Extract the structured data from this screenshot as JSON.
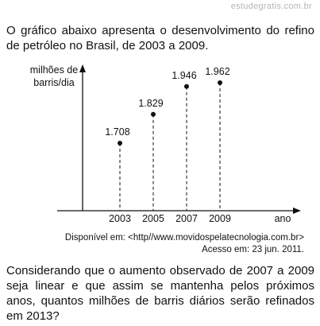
{
  "watermark": "estudegratis.com.br",
  "intro": "O gráfico abaixo apresenta o desenvolvimento do refino de petróleo no Brasil, de 2003 a 2009.",
  "chart_data": {
    "type": "scatter",
    "ylabel_line1": "milhões de",
    "ylabel_line2": "barris/dia",
    "xlabel": "ano",
    "x": [
      "2003",
      "2005",
      "2007",
      "2009"
    ],
    "values": [
      1.708,
      1.829,
      1.946,
      1.962
    ],
    "value_labels": [
      "1.708",
      "1.829",
      "1.946",
      "1.962"
    ],
    "grid": false,
    "dashed_drop_lines": true
  },
  "source": {
    "line1": "Disponível em: <http//www.movidospelatecnologia.com.br>",
    "line2": "Acesso em: 23 jun. 2011."
  },
  "question": "Considerando que o aumento observado de 2007 a 2009 seja linear e que assim se mantenha pelos próximos anos, quantos milhões de barris diários serão refinados em 2013?"
}
